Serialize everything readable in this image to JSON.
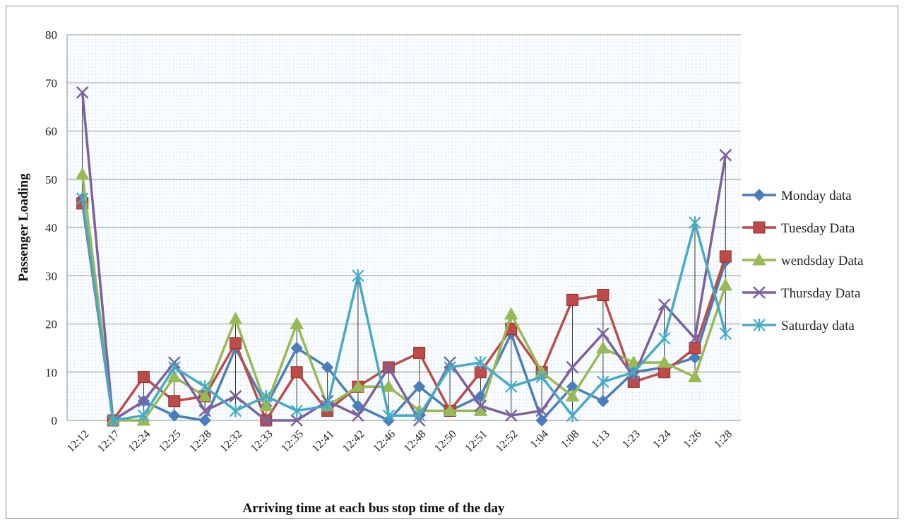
{
  "chart_data": {
    "type": "line",
    "title": "",
    "xlabel": "Arriving  time at each bus stop time of the day",
    "ylabel": "Passenger Loading",
    "ylim": [
      0,
      80
    ],
    "yticks": [
      0,
      10,
      20,
      30,
      40,
      50,
      60,
      70,
      80
    ],
    "grid": true,
    "legend_position": "right",
    "categories": [
      "12:12",
      "12:17",
      "12:24",
      "12:25",
      "12:28",
      "12:32",
      "12:33",
      "12:35",
      "12:41",
      "12:42",
      "12:46",
      "12:48",
      "12:50",
      "12:51",
      "12:52",
      "1:04",
      "1:08",
      "1:13",
      "1:23",
      "1:24",
      "1:26",
      "1:28"
    ],
    "series": [
      {
        "name": "Monday data",
        "color": "#4a7ebb",
        "marker": "diamond",
        "values": [
          46,
          0,
          4,
          1,
          0,
          15,
          3,
          15,
          11,
          3,
          0,
          7,
          2,
          5,
          18,
          0,
          7,
          4,
          10,
          11,
          13,
          33
        ]
      },
      {
        "name": "Tuesday Data",
        "color": "#be4b48",
        "marker": "square",
        "values": [
          45,
          0,
          9,
          4,
          5,
          16,
          0,
          10,
          2,
          7,
          11,
          14,
          2,
          10,
          19,
          10,
          25,
          26,
          8,
          10,
          15,
          34
        ]
      },
      {
        "name": "wendsday Data",
        "color": "#98b954",
        "marker": "triangle",
        "values": [
          51,
          0,
          0,
          9,
          5,
          21,
          3,
          20,
          3,
          7,
          7,
          2,
          2,
          2,
          22,
          10,
          5,
          15,
          12,
          12,
          9,
          28
        ]
      },
      {
        "name": "Thursday Data",
        "color": "#7d60a0",
        "marker": "x",
        "values": [
          68,
          0,
          4,
          12,
          2,
          5,
          0,
          0,
          4,
          1,
          11,
          0,
          12,
          3,
          1,
          2,
          11,
          18,
          9,
          24,
          17,
          55
        ]
      },
      {
        "name": "Saturday data",
        "color": "#46aac5",
        "marker": "star",
        "values": [
          46,
          0,
          1,
          11,
          7,
          2,
          5,
          2,
          3,
          30,
          1,
          1,
          11,
          12,
          7,
          9,
          1,
          8,
          10,
          17,
          41,
          18
        ]
      }
    ]
  }
}
